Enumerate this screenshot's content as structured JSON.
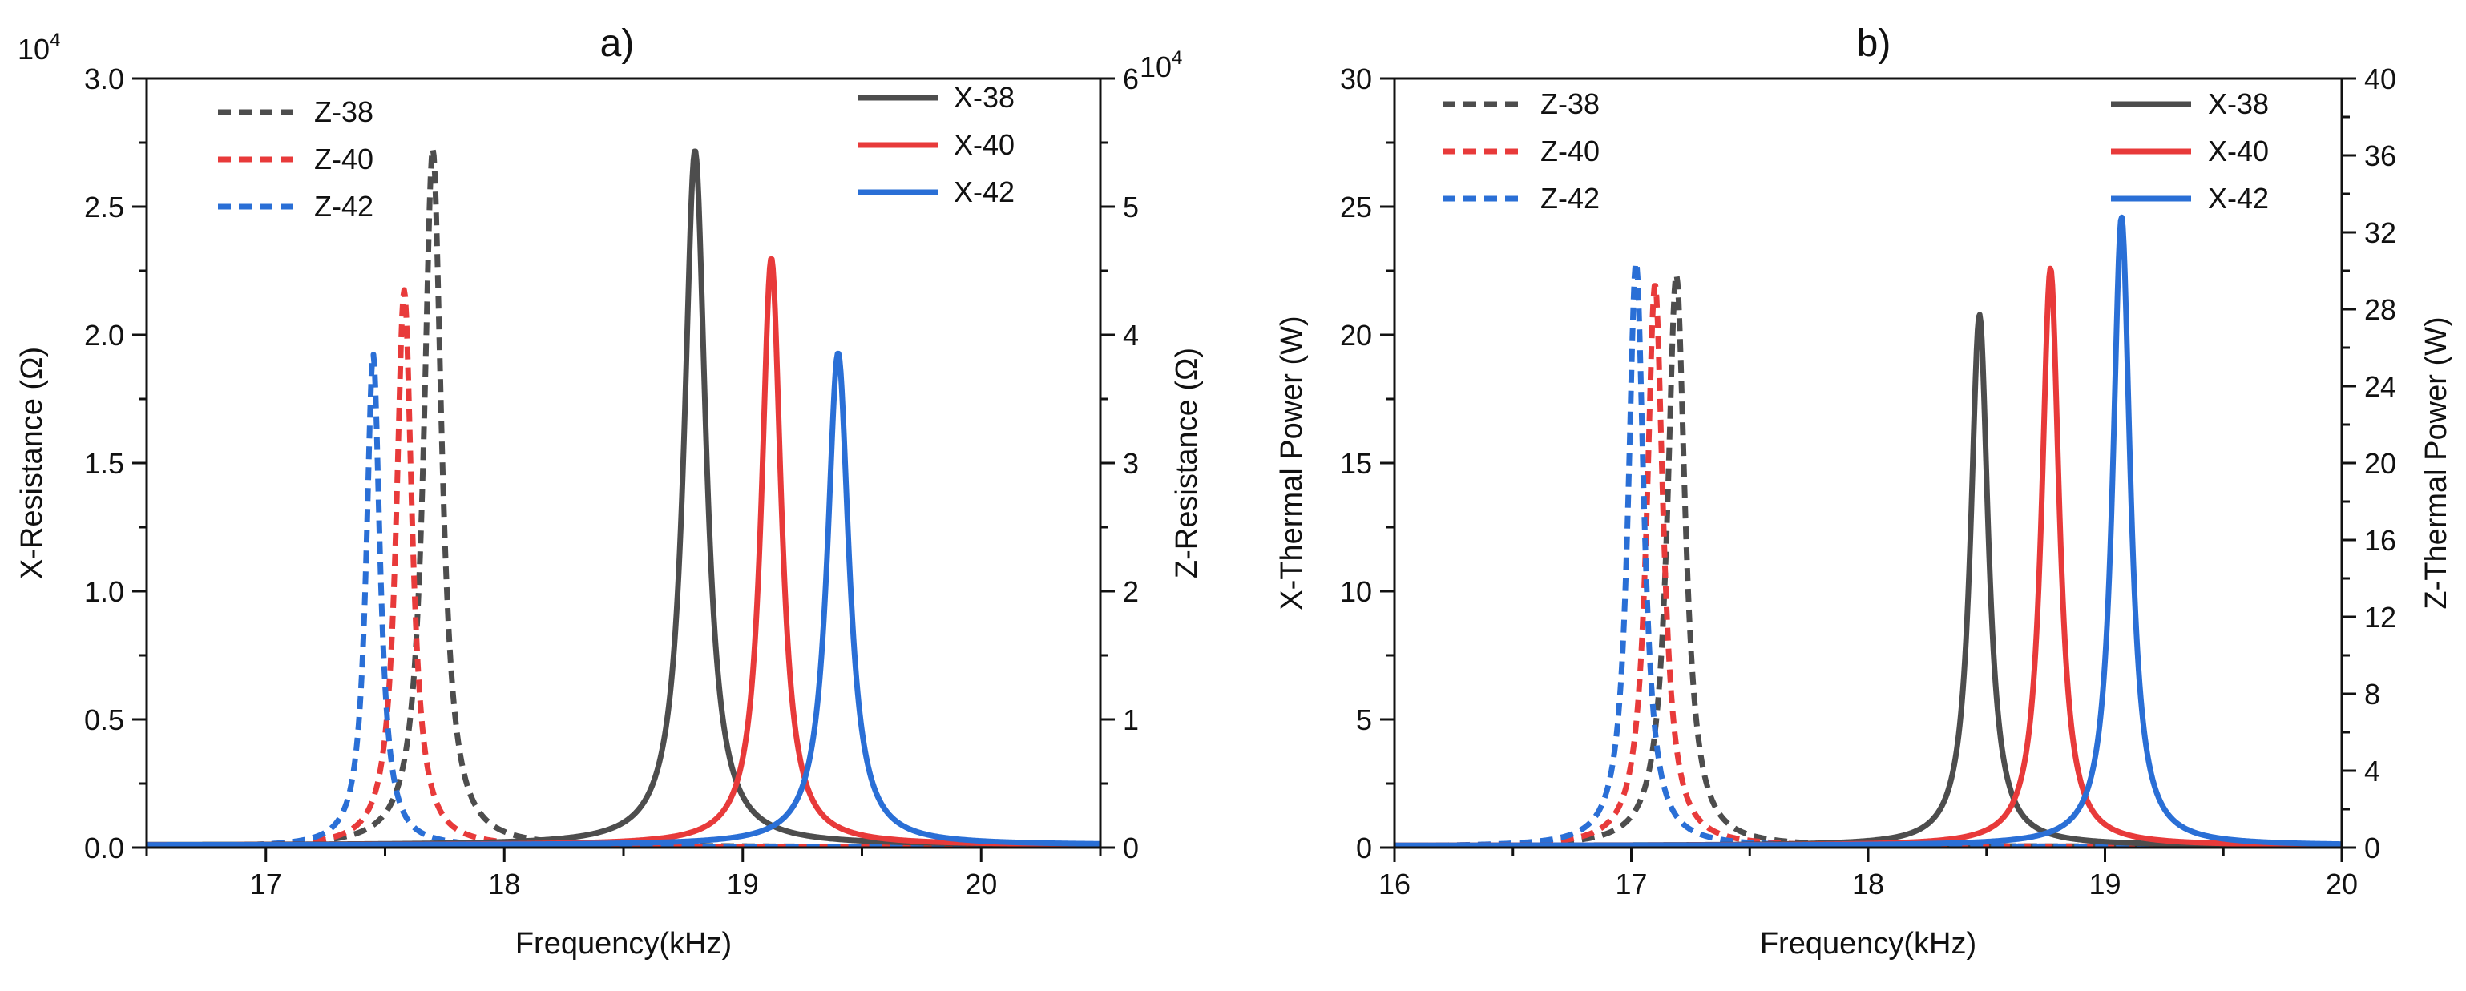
{
  "chart_data": [
    {
      "panel": "a)",
      "type": "line",
      "title": "a)",
      "xlabel": "Frequency(kHz)",
      "ylabel_left": "X-Resistance (Ω)",
      "ylabel_right": "Z-Resistance (Ω)",
      "left_multiplier": "10",
      "left_multiplier_exp": "4",
      "right_multiplier": "10",
      "right_multiplier_exp": "4",
      "xlim": [
        16.5,
        20.5
      ],
      "ylim_left": [
        0,
        3.0
      ],
      "ylim_right": [
        0,
        6
      ],
      "xticks": [
        17,
        18,
        19,
        20
      ],
      "xtick_labels": [
        "17",
        "18",
        "19",
        "20"
      ],
      "yticks_left": [
        0,
        0.5,
        1.0,
        1.5,
        2.0,
        2.5,
        3.0
      ],
      "ytick_labels_left": [
        "0.0",
        "0.5",
        "1.0",
        "1.5",
        "2.0",
        "2.5",
        "3.0"
      ],
      "yticks_right": [
        0,
        1,
        2,
        3,
        4,
        5,
        6
      ],
      "ytick_labels_right": [
        "0",
        "1",
        "2",
        "3",
        "4",
        "5",
        "6"
      ],
      "legend_left": [
        "Z-38",
        "Z-40",
        "Z-42"
      ],
      "legend_right": [
        "X-38",
        "X-40",
        "X-42"
      ],
      "series": [
        {
          "name": "Z-38",
          "axis": "right",
          "style": "dashed",
          "color": "#4d4d4d",
          "peak_x": 17.7,
          "peak_y": 5.45,
          "hwhm": 0.045,
          "baseline": 0.005
        },
        {
          "name": "Z-40",
          "axis": "right",
          "style": "dashed",
          "color": "#e83a3a",
          "peak_x": 17.58,
          "peak_y": 4.35,
          "hwhm": 0.04,
          "baseline": 0.005
        },
        {
          "name": "Z-42",
          "axis": "right",
          "style": "dashed",
          "color": "#2a6fd6",
          "peak_x": 17.45,
          "peak_y": 3.85,
          "hwhm": 0.035,
          "baseline": 0.005
        },
        {
          "name": "X-38",
          "axis": "left",
          "style": "solid",
          "color": "#4d4d4d",
          "peak_x": 18.8,
          "peak_y": 2.72,
          "hwhm": 0.055,
          "baseline": 0.01
        },
        {
          "name": "X-40",
          "axis": "left",
          "style": "solid",
          "color": "#e83a3a",
          "peak_x": 19.12,
          "peak_y": 2.3,
          "hwhm": 0.05,
          "baseline": 0.01
        },
        {
          "name": "X-42",
          "axis": "left",
          "style": "solid",
          "color": "#2a6fd6",
          "peak_x": 19.4,
          "peak_y": 1.93,
          "hwhm": 0.055,
          "baseline": 0.01
        }
      ]
    },
    {
      "panel": "b)",
      "type": "line",
      "title": "b)",
      "xlabel": "Frequency(kHz)",
      "ylabel_left": "X-Thermal Power (W)",
      "ylabel_right": "Z-Thermal Power (W)",
      "xlim": [
        16,
        20
      ],
      "ylim_left": [
        0,
        30
      ],
      "ylim_right": [
        0,
        40
      ],
      "xticks": [
        16,
        17,
        18,
        19,
        20
      ],
      "xtick_labels": [
        "16",
        "17",
        "18",
        "19",
        "20"
      ],
      "yticks_left": [
        0,
        5,
        10,
        15,
        20,
        25,
        30
      ],
      "ytick_labels_left": [
        "0",
        "5",
        "10",
        "15",
        "20",
        "25",
        "30"
      ],
      "yticks_right": [
        0,
        4,
        8,
        12,
        16,
        20,
        24,
        28,
        32,
        36,
        40
      ],
      "ytick_labels_right": [
        "0",
        "4",
        "8",
        "12",
        "16",
        "20",
        "24",
        "28",
        "32",
        "36",
        "40"
      ],
      "legend_left": [
        "Z-38",
        "Z-40",
        "Z-42"
      ],
      "legend_right": [
        "X-38",
        "X-40",
        "X-42"
      ],
      "series": [
        {
          "name": "Z-38",
          "axis": "right",
          "style": "dashed",
          "color": "#4d4d4d",
          "peak_x": 17.19,
          "peak_y": 29.8,
          "hwhm": 0.045,
          "baseline": 0.05
        },
        {
          "name": "Z-40",
          "axis": "right",
          "style": "dashed",
          "color": "#e83a3a",
          "peak_x": 17.1,
          "peak_y": 29.3,
          "hwhm": 0.042,
          "baseline": 0.05
        },
        {
          "name": "Z-42",
          "axis": "right",
          "style": "dashed",
          "color": "#2a6fd6",
          "peak_x": 17.02,
          "peak_y": 30.5,
          "hwhm": 0.04,
          "baseline": 0.05
        },
        {
          "name": "X-38",
          "axis": "left",
          "style": "solid",
          "color": "#4d4d4d",
          "peak_x": 18.47,
          "peak_y": 20.8,
          "hwhm": 0.045,
          "baseline": 0.08
        },
        {
          "name": "X-40",
          "axis": "left",
          "style": "solid",
          "color": "#e83a3a",
          "peak_x": 18.77,
          "peak_y": 22.6,
          "hwhm": 0.045,
          "baseline": 0.08
        },
        {
          "name": "X-42",
          "axis": "left",
          "style": "solid",
          "color": "#2a6fd6",
          "peak_x": 19.07,
          "peak_y": 24.6,
          "hwhm": 0.045,
          "baseline": 0.08
        }
      ]
    }
  ]
}
